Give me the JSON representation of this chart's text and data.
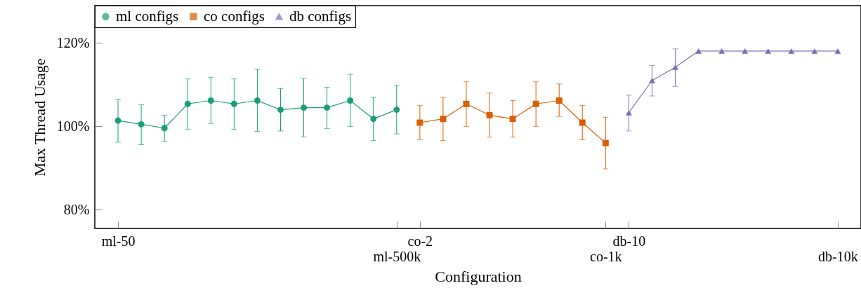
{
  "chart_data": {
    "type": "line",
    "xlabel": "Configuration",
    "ylabel": "Max Thread Usage",
    "categories": [
      "ml-50",
      null,
      null,
      null,
      null,
      null,
      null,
      null,
      null,
      null,
      null,
      null,
      "ml-500k",
      "co-2",
      null,
      null,
      null,
      null,
      null,
      null,
      null,
      "co-1k",
      "db-10",
      null,
      null,
      null,
      null,
      null,
      null,
      null,
      null,
      "db-10k"
    ],
    "ylim": [
      75.5,
      129
    ],
    "yticks": [
      {
        "value": 80,
        "label": "80%"
      },
      {
        "value": 100,
        "label": "100%"
      },
      {
        "value": 120,
        "label": "120%"
      }
    ],
    "legend": "top left",
    "grid": false,
    "series": [
      {
        "name": "ml configs",
        "color": "#1b9e77",
        "marker": "circle",
        "values": [
          101.4,
          100.5,
          99.6,
          105.4,
          106.2,
          105.4,
          106.2,
          104.0,
          104.5,
          104.5,
          106.2,
          101.8,
          104.0,
          null,
          null,
          null,
          null,
          null,
          null,
          null,
          null,
          null,
          null,
          null,
          null,
          null,
          null,
          null,
          null,
          null,
          null,
          null
        ],
        "errors": [
          [
            96.2,
            106.5
          ],
          [
            95.6,
            105.2
          ],
          [
            96.4,
            102.7
          ],
          [
            99.3,
            111.4
          ],
          [
            100.7,
            111.8
          ],
          [
            99.3,
            111.4
          ],
          [
            98.8,
            113.7
          ],
          [
            98.9,
            109.1
          ],
          [
            97.5,
            111.5
          ],
          [
            99.5,
            109.4
          ],
          [
            100.0,
            112.5
          ],
          [
            96.6,
            107.0
          ],
          [
            98.2,
            109.9
          ],
          null,
          null,
          null,
          null,
          null,
          null,
          null,
          null,
          null,
          null,
          null,
          null,
          null,
          null,
          null,
          null,
          null,
          null,
          null
        ]
      },
      {
        "name": "co configs",
        "color": "#d95f02",
        "marker": "square",
        "values": [
          null,
          null,
          null,
          null,
          null,
          null,
          null,
          null,
          null,
          null,
          null,
          null,
          null,
          100.9,
          101.8,
          105.4,
          102.7,
          101.8,
          105.4,
          106.2,
          100.9,
          96.0,
          null,
          null,
          null,
          null,
          null,
          null,
          null,
          null,
          null,
          null
        ],
        "errors": [
          null,
          null,
          null,
          null,
          null,
          null,
          null,
          null,
          null,
          null,
          null,
          null,
          null,
          [
            96.8,
            105.0
          ],
          [
            96.6,
            107.0
          ],
          [
            100.0,
            110.7
          ],
          [
            97.4,
            108.0
          ],
          [
            97.4,
            106.2
          ],
          [
            100.0,
            110.7
          ],
          [
            102.4,
            110.2
          ],
          [
            96.8,
            105.0
          ],
          [
            89.8,
            102.2
          ],
          null,
          null,
          null,
          null,
          null,
          null,
          null,
          null,
          null,
          null
        ]
      },
      {
        "name": "db configs",
        "color": "#7570b3",
        "marker": "triangle",
        "values": [
          null,
          null,
          null,
          null,
          null,
          null,
          null,
          null,
          null,
          null,
          null,
          null,
          null,
          null,
          null,
          null,
          null,
          null,
          null,
          null,
          null,
          null,
          103.3,
          111.0,
          114.2,
          118.1,
          118.1,
          118.1,
          118.1,
          118.1,
          118.1,
          118.1
        ],
        "errors": [
          null,
          null,
          null,
          null,
          null,
          null,
          null,
          null,
          null,
          null,
          null,
          null,
          null,
          null,
          null,
          null,
          null,
          null,
          null,
          null,
          null,
          null,
          [
            98.9,
            107.5
          ],
          [
            107.3,
            114.6
          ],
          [
            109.6,
            118.6
          ],
          null,
          null,
          null,
          null,
          null,
          null,
          null
        ]
      }
    ]
  }
}
